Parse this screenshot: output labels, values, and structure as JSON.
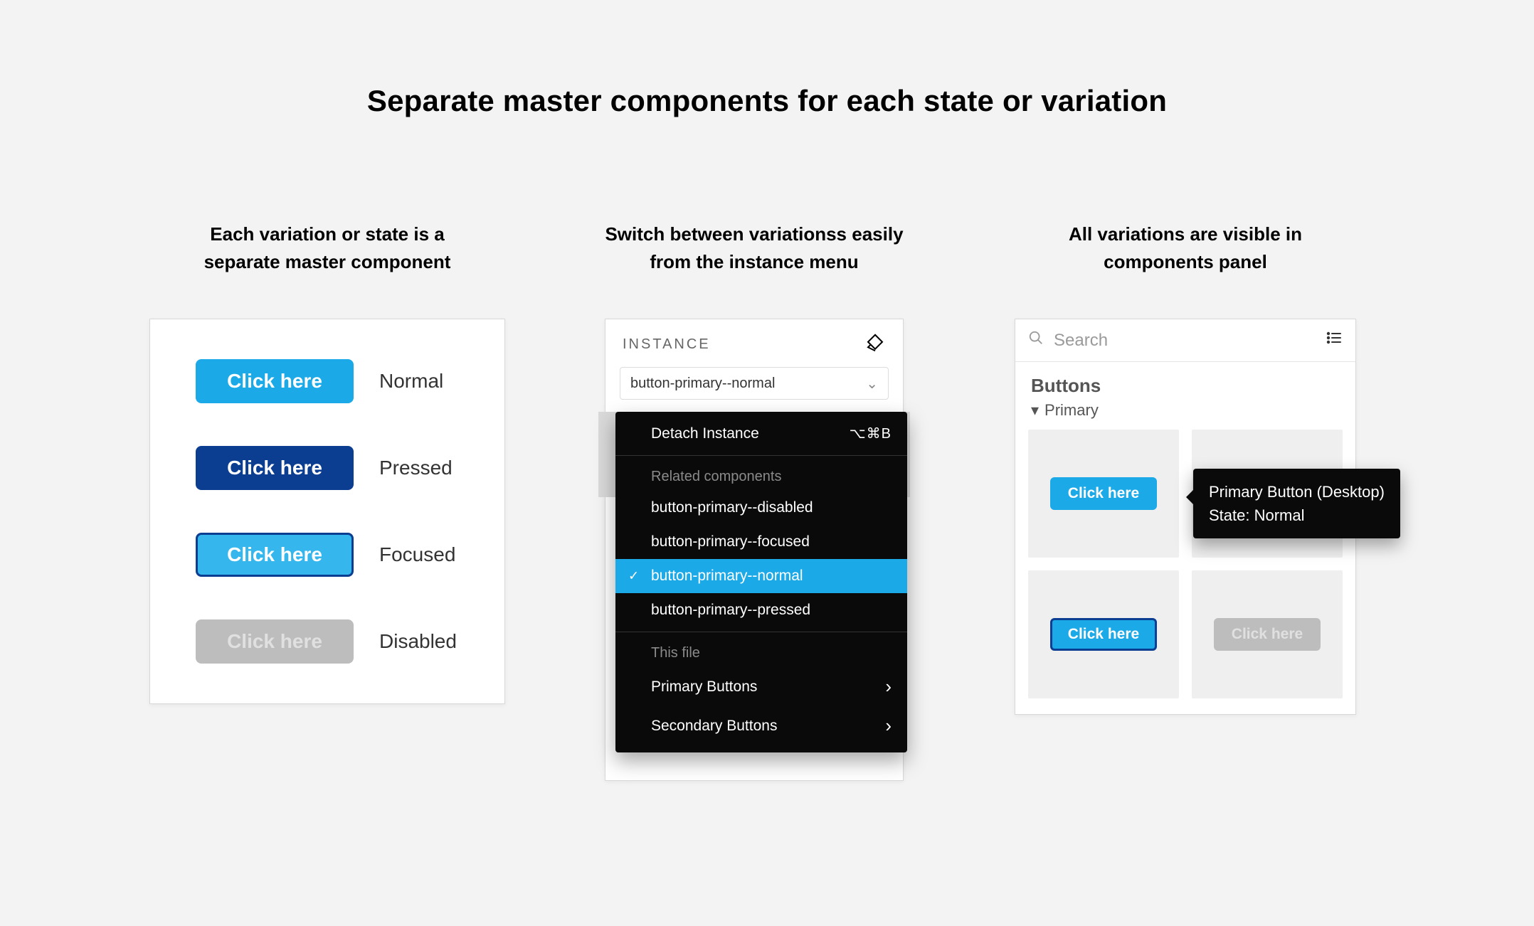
{
  "page_title": "Separate master components for each state or variation",
  "background_color": "#f3f3f3",
  "columns": {
    "col1": {
      "title_line1": "Each variation or state is a",
      "title_line2": "separate master component"
    },
    "col2": {
      "title_line1": "Switch between variationss easily",
      "title_line2": "from the instance menu"
    },
    "col3": {
      "title_line1": "All variations are visible in",
      "title_line2": "components panel"
    }
  },
  "button_states": {
    "label_text": "Click here",
    "states": [
      {
        "name": "Normal",
        "bg": "#1ba9e8",
        "fg": "#ffffff",
        "border": "none"
      },
      {
        "name": "Pressed",
        "bg": "#0b3d91",
        "fg": "#ffffff",
        "border": "none"
      },
      {
        "name": "Focused",
        "bg": "#35b6ec",
        "fg": "#ffffff",
        "border": "3px solid #0b3d91"
      },
      {
        "name": "Disabled",
        "bg": "#bdbdbd",
        "fg": "#e0e0e0",
        "border": "none"
      }
    ]
  },
  "instance_panel": {
    "header_label": "INSTANCE",
    "select_value": "button-primary--normal",
    "dropdown": {
      "detach_label": "Detach Instance",
      "detach_kbd": "⌥⌘B",
      "related_heading": "Related components",
      "related_items": [
        "button-primary--disabled",
        "button-primary--focused",
        "button-primary--normal",
        "button-primary--pressed"
      ],
      "related_selected_index": 2,
      "this_file_heading": "This file",
      "this_file_items": [
        "Primary Buttons",
        "Secondary Buttons"
      ],
      "colors": {
        "bg": "#0a0a0a",
        "selected_bg": "#1ba9e8",
        "heading_fg": "#8a8a8a",
        "fg": "#ffffff"
      }
    }
  },
  "components_panel": {
    "search_placeholder": "Search",
    "section_title": "Buttons",
    "tree_label": "Primary",
    "thumb_label": "Click here",
    "thumbs": [
      {
        "bg": "#1ba9e8",
        "fg": "#ffffff",
        "border": "none"
      },
      {
        "bg": null,
        "fg": null,
        "border": "none"
      },
      {
        "bg": "#1ba9e8",
        "fg": "#ffffff",
        "border": "3px solid #0b3d91"
      },
      {
        "bg": "#bdbdbd",
        "fg": "#e0e0e0",
        "border": "none"
      }
    ],
    "tooltip_line1": "Primary Button (Desktop)",
    "tooltip_line2": "State: Normal"
  }
}
